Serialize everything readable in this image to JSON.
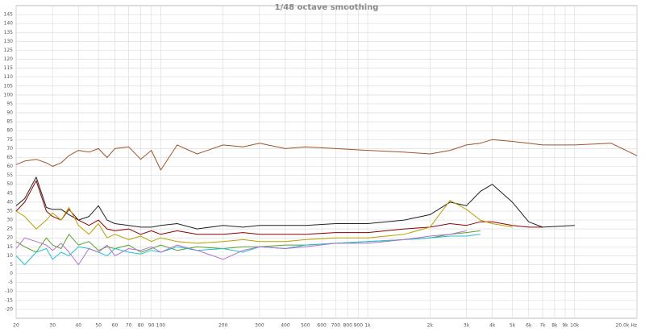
{
  "chart_data": {
    "type": "line",
    "title": "1/48 octave smoothing",
    "xscale": "log",
    "grid": true,
    "xlim": [
      20,
      20000
    ],
    "ylim": [
      -25,
      150
    ],
    "xticks": [
      20,
      30,
      40,
      50,
      60,
      70,
      80,
      90,
      100,
      200,
      300,
      400,
      500,
      600,
      700,
      800,
      900,
      {
        "value": 1000,
        "label": "1k"
      },
      {
        "value": 2000,
        "label": "2k"
      },
      {
        "value": 3000,
        "label": "3k"
      },
      {
        "value": 4000,
        "label": "4k"
      },
      {
        "value": 5000,
        "label": "5k"
      },
      {
        "value": 6000,
        "label": "6k"
      },
      {
        "value": 7000,
        "label": "7k"
      },
      {
        "value": 8000,
        "label": "8k"
      },
      {
        "value": 9000,
        "label": "9k"
      },
      {
        "value": 10000,
        "label": "10k"
      },
      {
        "value": 20000,
        "label": "20.0k Hz"
      }
    ],
    "yticks": [
      -20,
      -15,
      -10,
      -5,
      0,
      5,
      10,
      15,
      20,
      25,
      30,
      35,
      40,
      45,
      50,
      55,
      60,
      65,
      70,
      75,
      80,
      85,
      90,
      95,
      100,
      105,
      110,
      115,
      120,
      125,
      130,
      135,
      140,
      145
    ],
    "x": [
      20,
      22,
      25,
      28,
      30,
      33,
      36,
      40,
      45,
      50,
      55,
      60,
      70,
      80,
      90,
      100,
      120,
      150,
      200,
      250,
      300,
      400,
      500,
      700,
      1000,
      1500,
      2000,
      2500,
      3000,
      3500,
      4000,
      5000,
      6000,
      7000,
      10000,
      15000,
      20000
    ],
    "series": [
      {
        "color": "#a0522d",
        "values": [
          61,
          63,
          64,
          62,
          60,
          62,
          66,
          69,
          68,
          70,
          65,
          70,
          71,
          64,
          69,
          58,
          72,
          67,
          72,
          71,
          73,
          70,
          71,
          70,
          69,
          68,
          67,
          69,
          72,
          73,
          75,
          74,
          73,
          72,
          72,
          73,
          66
        ]
      },
      {
        "color": "#222222",
        "values": [
          38,
          42,
          54,
          37,
          36,
          36,
          33,
          30,
          32,
          38,
          30,
          28,
          27,
          26,
          26,
          27,
          28,
          25,
          27,
          26,
          27,
          27,
          27,
          28,
          28,
          30,
          33,
          40,
          38,
          46,
          50,
          40,
          29,
          26,
          27,
          null,
          null
        ]
      },
      {
        "color": "#8b0000",
        "values": [
          35,
          40,
          52,
          35,
          32,
          30,
          36,
          30,
          27,
          30,
          25,
          24,
          25,
          22,
          24,
          22,
          24,
          22,
          22,
          23,
          22,
          22,
          22,
          23,
          23,
          25,
          26,
          28,
          27,
          29,
          29,
          27,
          26,
          26,
          null,
          null,
          null
        ]
      },
      {
        "color": "#b8a000",
        "values": [
          35,
          32,
          25,
          30,
          34,
          30,
          37,
          27,
          22,
          28,
          20,
          22,
          19,
          21,
          18,
          20,
          18,
          17,
          18,
          19,
          18,
          18,
          19,
          20,
          20,
          22,
          26,
          41,
          36,
          30,
          28,
          26,
          null,
          null,
          null,
          null,
          null
        ]
      },
      {
        "color": "#5aa02c",
        "values": [
          18,
          15,
          12,
          20,
          16,
          14,
          22,
          16,
          18,
          13,
          15,
          14,
          16,
          12,
          14,
          16,
          13,
          15,
          14,
          15,
          15,
          16,
          16,
          17,
          18,
          19,
          20,
          22,
          23,
          24,
          null,
          null,
          null,
          null,
          null,
          null,
          null
        ]
      },
      {
        "color": "#20c0d0",
        "values": [
          10,
          5,
          12,
          14,
          8,
          12,
          10,
          15,
          14,
          12,
          10,
          14,
          12,
          11,
          13,
          12,
          15,
          13,
          14,
          12,
          15,
          14,
          16,
          17,
          18,
          19,
          20,
          21,
          21,
          22,
          null,
          null,
          null,
          null,
          null,
          null,
          null
        ]
      },
      {
        "color": "#b070d0",
        "values": [
          14,
          20,
          18,
          16,
          13,
          17,
          12,
          5,
          14,
          12,
          16,
          10,
          14,
          13,
          15,
          12,
          16,
          13,
          8,
          13,
          15,
          14,
          15,
          17,
          17,
          19,
          21,
          22,
          24,
          null,
          null,
          null,
          null,
          null,
          null,
          null,
          null
        ]
      }
    ]
  }
}
